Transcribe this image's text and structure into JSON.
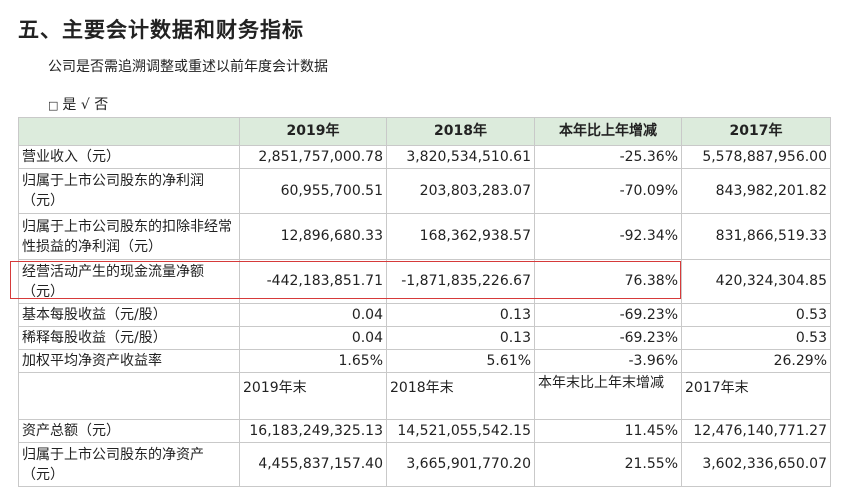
{
  "heading": "五、主要会计数据和财务指标",
  "subtitle": "公司是否需追溯调整或重述以前年度会计数据",
  "option": {
    "box": "□",
    "text": "是 √ 否"
  },
  "table1": {
    "headers": [
      "",
      "2019年",
      "2018年",
      "本年比上年增减",
      "2017年"
    ],
    "rows": [
      {
        "label": "营业收入（元）",
        "v2019": "2,851,757,000.78",
        "v2018": "3,820,534,510.61",
        "change": "-25.36%",
        "v2017": "5,578,887,956.00"
      },
      {
        "label": "归属于上市公司股东的净利润（元）",
        "v2019": "60,955,700.51",
        "v2018": "203,803,283.07",
        "change": "-70.09%",
        "v2017": "843,982,201.82"
      },
      {
        "label": "归属于上市公司股东的扣除非经常性损益的净利润（元）",
        "v2019": "12,896,680.33",
        "v2018": "168,362,938.57",
        "change": "-92.34%",
        "v2017": "831,866,519.33"
      },
      {
        "label": "经营活动产生的现金流量净额（元）",
        "v2019": "-442,183,851.71",
        "v2018": "-1,871,835,226.67",
        "change": "76.38%",
        "v2017": "420,324,304.85"
      },
      {
        "label": "基本每股收益（元/股）",
        "v2019": "0.04",
        "v2018": "0.13",
        "change": "-69.23%",
        "v2017": "0.53"
      },
      {
        "label": "稀释每股收益（元/股）",
        "v2019": "0.04",
        "v2018": "0.13",
        "change": "-69.23%",
        "v2017": "0.53"
      },
      {
        "label": "加权平均净资产收益率",
        "v2019": "1.65%",
        "v2018": "5.61%",
        "change": "-3.96%",
        "v2017": "26.29%"
      }
    ]
  },
  "table2": {
    "headers": [
      "",
      "2019年末",
      "2018年末",
      "本年末比上年末增减",
      "2017年末"
    ],
    "rows": [
      {
        "label": "资产总额（元）",
        "v2019": "16,183,249,325.13",
        "v2018": "14,521,055,542.15",
        "change": "11.45%",
        "v2017": "12,476,140,771.27"
      },
      {
        "label": "归属于上市公司股东的净资产（元）",
        "v2019": "4,455,837,157.40",
        "v2018": "3,665,901,770.20",
        "change": "21.55%",
        "v2017": "3,602,336,650.07"
      }
    ]
  },
  "highlight_color": "#d63a3a",
  "header_bg": "#dcebdc"
}
